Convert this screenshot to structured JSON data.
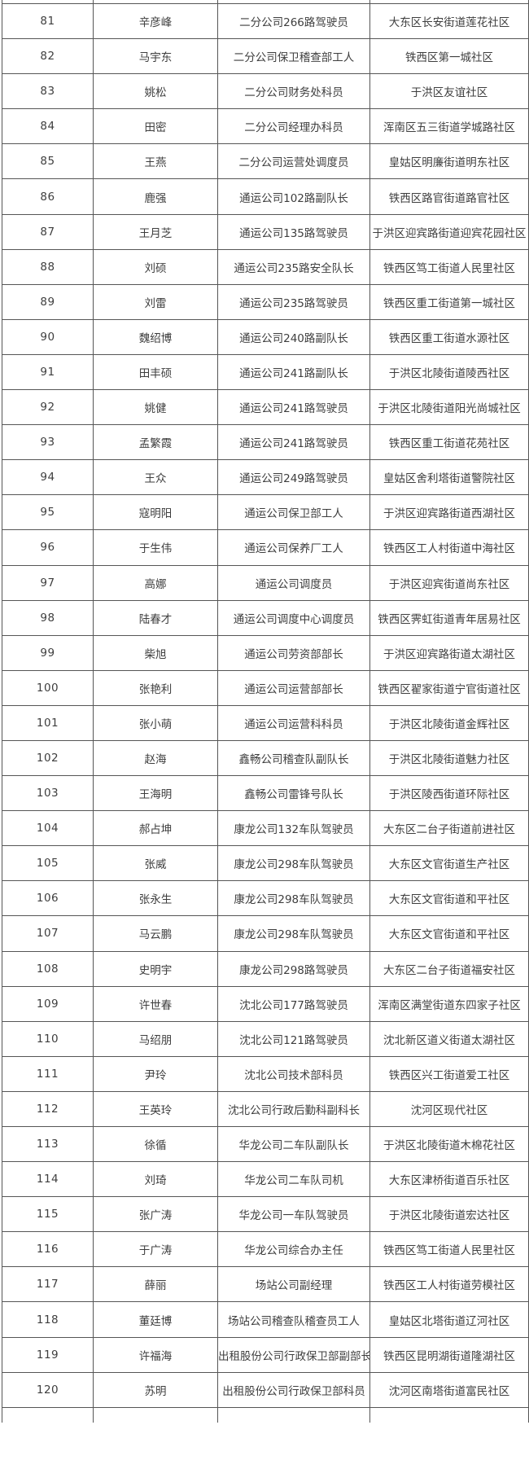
{
  "page": {
    "background": "#ffffff"
  },
  "table": {
    "border_color": "#565656",
    "text_color": "#3e3e3e",
    "row_background": "#ffffff",
    "visible_row_range": "81-120",
    "rows": [
      {
        "no": "81",
        "name": "辛彦峰",
        "position": "二分公司266路驾驶员",
        "community": "大东区长安街道莲花社区"
      },
      {
        "no": "82",
        "name": "马宇东",
        "position": "二分公司保卫稽查部工人",
        "community": "铁西区第一城社区"
      },
      {
        "no": "83",
        "name": "姚松",
        "position": "二分公司财务处科员",
        "community": "于洪区友谊社区"
      },
      {
        "no": "84",
        "name": "田密",
        "position": "二分公司经理办科员",
        "community": "浑南区五三街道学城路社区"
      },
      {
        "no": "85",
        "name": "王燕",
        "position": "二分公司运营处调度员",
        "community": "皇姑区明廉街道明东社区"
      },
      {
        "no": "86",
        "name": "鹿强",
        "position": "通运公司102路副队长",
        "community": "铁西区路官街道路官社区"
      },
      {
        "no": "87",
        "name": "王月芝",
        "position": "通运公司135路驾驶员",
        "community": "于洪区迎宾路街道迎宾花园社区"
      },
      {
        "no": "88",
        "name": "刘硕",
        "position": "通运公司235路安全队长",
        "community": "铁西区笃工街道人民里社区"
      },
      {
        "no": "89",
        "name": "刘雷",
        "position": "通运公司235路驾驶员",
        "community": "铁西区重工街道第一城社区"
      },
      {
        "no": "90",
        "name": "魏绍博",
        "position": "通运公司240路副队长",
        "community": "铁西区重工街道水源社区"
      },
      {
        "no": "91",
        "name": "田丰硕",
        "position": "通运公司241路副队长",
        "community": "于洪区北陵街道陵西社区"
      },
      {
        "no": "92",
        "name": "姚健",
        "position": "通运公司241路驾驶员",
        "community": "于洪区北陵街道阳光尚城社区"
      },
      {
        "no": "93",
        "name": "孟繁霞",
        "position": "通运公司241路驾驶员",
        "community": "铁西区重工街道花苑社区"
      },
      {
        "no": "94",
        "name": "王众",
        "position": "通运公司249路驾驶员",
        "community": "皇姑区舍利塔街道警院社区"
      },
      {
        "no": "95",
        "name": "寇明阳",
        "position": "通运公司保卫部工人",
        "community": "于洪区迎宾路街道西湖社区"
      },
      {
        "no": "96",
        "name": "于生伟",
        "position": "通运公司保养厂工人",
        "community": "铁西区工人村街道中海社区"
      },
      {
        "no": "97",
        "name": "高娜",
        "position": "通运公司调度员",
        "community": "于洪区迎宾街道尚东社区"
      },
      {
        "no": "98",
        "name": "陆春才",
        "position": "通运公司调度中心调度员",
        "community": "铁西区霁虹街道青年居易社区"
      },
      {
        "no": "99",
        "name": "柴旭",
        "position": "通运公司劳资部部长",
        "community": "于洪区迎宾路街道太湖社区"
      },
      {
        "no": "100",
        "name": "张艳利",
        "position": "通运公司运营部部长",
        "community": "铁西区翟家街道宁官街道社区"
      },
      {
        "no": "101",
        "name": "张小萌",
        "position": "通运公司运营科科员",
        "community": "于洪区北陵街道金辉社区"
      },
      {
        "no": "102",
        "name": "赵海",
        "position": "鑫畅公司稽查队副队长",
        "community": "于洪区北陵街道魅力社区"
      },
      {
        "no": "103",
        "name": "王海明",
        "position": "鑫畅公司雷锋号队长",
        "community": "于洪区陵西街道环际社区"
      },
      {
        "no": "104",
        "name": "郝占坤",
        "position": "康龙公司132车队驾驶员",
        "community": "大东区二台子街道前进社区"
      },
      {
        "no": "105",
        "name": "张威",
        "position": "康龙公司298车队驾驶员",
        "community": "大东区文官街道生产社区"
      },
      {
        "no": "106",
        "name": "张永生",
        "position": "康龙公司298车队驾驶员",
        "community": "大东区文官街道和平社区"
      },
      {
        "no": "107",
        "name": "马云鹏",
        "position": "康龙公司298车队驾驶员",
        "community": "大东区文官街道和平社区"
      },
      {
        "no": "108",
        "name": "史明宇",
        "position": "康龙公司298路驾驶员",
        "community": "大东区二台子街道福安社区"
      },
      {
        "no": "109",
        "name": "许世春",
        "position": "沈北公司177路驾驶员",
        "community": "浑南区满堂街道东四家子社区"
      },
      {
        "no": "110",
        "name": "马绍朋",
        "position": "沈北公司121路驾驶员",
        "community": "沈北新区道义街道太湖社区"
      },
      {
        "no": "111",
        "name": "尹玲",
        "position": "沈北公司技术部科员",
        "community": "铁西区兴工街道爱工社区"
      },
      {
        "no": "112",
        "name": "王英玲",
        "position": "沈北公司行政后勤科副科长",
        "community": "沈河区现代社区"
      },
      {
        "no": "113",
        "name": "徐循",
        "position": "华龙公司二车队副队长",
        "community": "于洪区北陵街道木棉花社区"
      },
      {
        "no": "114",
        "name": "刘琦",
        "position": "华龙公司二车队司机",
        "community": "大东区津桥街道百乐社区"
      },
      {
        "no": "115",
        "name": "张广涛",
        "position": "华龙公司一车队驾驶员",
        "community": "于洪区北陵街道宏达社区"
      },
      {
        "no": "116",
        "name": "于广涛",
        "position": "华龙公司综合办主任",
        "community": "铁西区笃工街道人民里社区"
      },
      {
        "no": "117",
        "name": "薛丽",
        "position": "场站公司副经理",
        "community": "铁西区工人村街道劳模社区"
      },
      {
        "no": "118",
        "name": "董廷博",
        "position": "场站公司稽查队稽查员工人",
        "community": "皇姑区北塔街道辽河社区"
      },
      {
        "no": "119",
        "name": "许福海",
        "position": "出租股份公司行政保卫部副部长",
        "community": "铁西区昆明湖街道隆湖社区"
      },
      {
        "no": "120",
        "name": "苏明",
        "position": "出租股份公司行政保卫部科员",
        "community": "沈河区南塔街道富民社区"
      }
    ]
  }
}
